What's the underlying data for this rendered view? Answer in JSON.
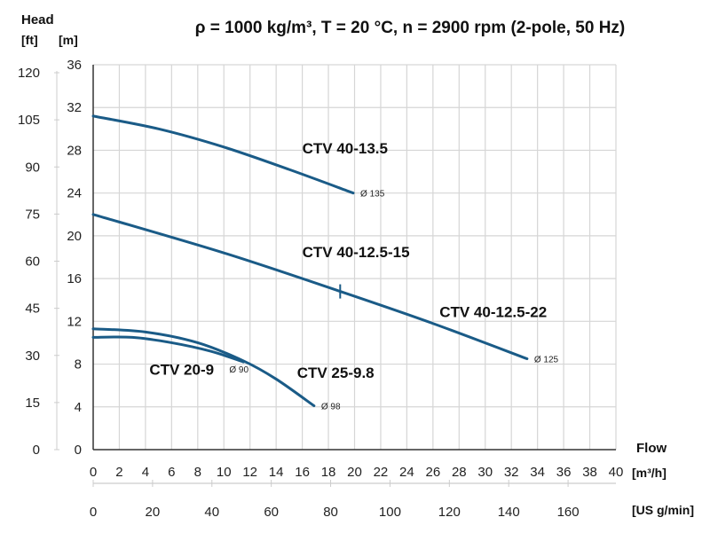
{
  "chart_data": {
    "type": "line",
    "title": "ρ = 1000 kg/m³, T = 20 °C, n = 2900 rpm (2-pole, 50 Hz)",
    "ylabel": "Head",
    "yunits": {
      "secondary": "[ft]",
      "primary": "[m]"
    },
    "xlabel": "Flow",
    "xunits": {
      "primary": "[m³/h]",
      "secondary": "[US g/min]"
    },
    "xlim": [
      0,
      40
    ],
    "ylim": [
      0,
      36
    ],
    "x_ticks": [
      0,
      2,
      4,
      6,
      8,
      10,
      12,
      14,
      16,
      18,
      20,
      22,
      24,
      26,
      28,
      30,
      32,
      34,
      36,
      38,
      40
    ],
    "y_ticks": [
      0,
      4,
      8,
      12,
      16,
      20,
      24,
      28,
      32,
      36
    ],
    "ft_ticks": [
      0,
      15,
      30,
      45,
      60,
      75,
      90,
      105,
      120
    ],
    "gpm_ticks": [
      0,
      20,
      40,
      60,
      80,
      100,
      120,
      140,
      160
    ],
    "grid": true,
    "line_color": "#1a5b87",
    "series": [
      {
        "name": "CTV 40-13.5",
        "diameter": "Ø 135",
        "x": [
          0,
          5,
          10,
          15,
          19.9
        ],
        "y": [
          31.2,
          30.0,
          28.3,
          26.2,
          24.0
        ]
      },
      {
        "name": "CTV 40-12.5-15 / CTV 40-12.5-22",
        "diameter": "Ø 125",
        "x": [
          0,
          10,
          18.9,
          26,
          33.2
        ],
        "y": [
          22.0,
          18.4,
          14.8,
          11.8,
          8.5
        ],
        "marker": {
          "x": 18.9,
          "y": 14.8
        }
      },
      {
        "name": "CTV 25-9.8",
        "diameter": "Ø 98",
        "x": [
          0,
          4,
          8,
          11.5,
          14,
          16.9
        ],
        "y": [
          11.3,
          11.0,
          10.0,
          8.3,
          6.6,
          4.1
        ]
      },
      {
        "name": "CTV 20-9",
        "diameter": "Ø 90",
        "x": [
          0,
          3,
          6,
          9,
          11.5
        ],
        "y": [
          10.5,
          10.5,
          10.0,
          9.2,
          8.2
        ]
      }
    ],
    "labels": [
      {
        "text": "CTV 40-13.5",
        "x": 16,
        "y": 27.7
      },
      {
        "text": "CTV 40-12.5-15",
        "x": 16,
        "y": 18.0
      },
      {
        "text": "CTV 40-12.5-22",
        "x": 26.5,
        "y": 12.4
      },
      {
        "text": "CTV 20-9",
        "x": 4.3,
        "y": 7.0
      },
      {
        "text": "CTV 25-9.8",
        "x": 15.6,
        "y": 6.7
      }
    ]
  }
}
